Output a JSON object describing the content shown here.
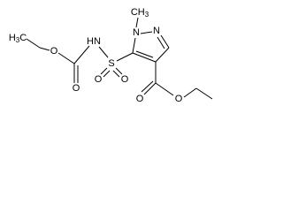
{
  "molecule": {
    "atoms": [
      {
        "label": "H3C"
      },
      {
        "label": "O"
      },
      {
        "label": "O"
      },
      {
        "label": "HN"
      },
      {
        "label": "S"
      },
      {
        "label": "O"
      },
      {
        "label": "O"
      },
      {
        "label": "N"
      },
      {
        "label": "N"
      },
      {
        "label": "CH3"
      },
      {
        "label": "O"
      },
      {
        "label": "O"
      }
    ]
  }
}
